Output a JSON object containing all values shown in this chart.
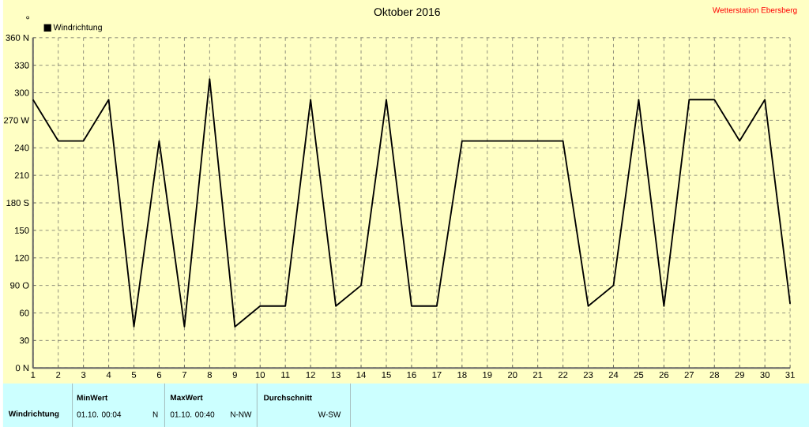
{
  "chart_data": {
    "type": "line",
    "title": "Oktober 2016",
    "ylabel": "°",
    "x": [
      1,
      2,
      3,
      4,
      5,
      6,
      7,
      8,
      9,
      10,
      11,
      12,
      13,
      14,
      15,
      16,
      17,
      18,
      19,
      20,
      21,
      22,
      23,
      24,
      25,
      26,
      27,
      28,
      29,
      30,
      31
    ],
    "series": [
      {
        "name": "Windrichtung",
        "color": "#000000",
        "values": [
          292.5,
          247.5,
          247.5,
          292.5,
          45,
          247.5,
          45,
          315,
          45,
          67.5,
          67.5,
          292.5,
          67.5,
          90,
          292.5,
          67.5,
          67.5,
          247.5,
          247.5,
          247.5,
          247.5,
          247.5,
          67.5,
          90,
          292.5,
          67.5,
          292.5,
          292.5,
          247.5,
          292.5,
          70
        ]
      }
    ],
    "xlim": [
      1,
      31
    ],
    "ylim": [
      0,
      360
    ],
    "xticks": [
      1,
      2,
      3,
      4,
      5,
      6,
      7,
      8,
      9,
      10,
      11,
      12,
      13,
      14,
      15,
      16,
      17,
      18,
      19,
      20,
      21,
      22,
      23,
      24,
      25,
      26,
      27,
      28,
      29,
      30,
      31
    ],
    "yticks": [
      {
        "value": 0,
        "label": "0  N"
      },
      30,
      60,
      {
        "value": 90,
        "label": "90  O"
      },
      120,
      150,
      {
        "value": 180,
        "label": "180 S"
      },
      210,
      240,
      {
        "value": 270,
        "label": "270 W"
      },
      300,
      330,
      {
        "value": 360,
        "label": "360 N"
      }
    ],
    "grid": true,
    "legend": "top left",
    "marker": "none",
    "line_style": "solid",
    "annotations": [
      "Wetterstation Ebersberg",
      "Windrichtung",
      "MinWert",
      "01.10.  00:04",
      "N",
      "MaxWert",
      "01.10.  00:40",
      "N-NW",
      "Durchschnitt",
      "W-SW"
    ]
  }
}
